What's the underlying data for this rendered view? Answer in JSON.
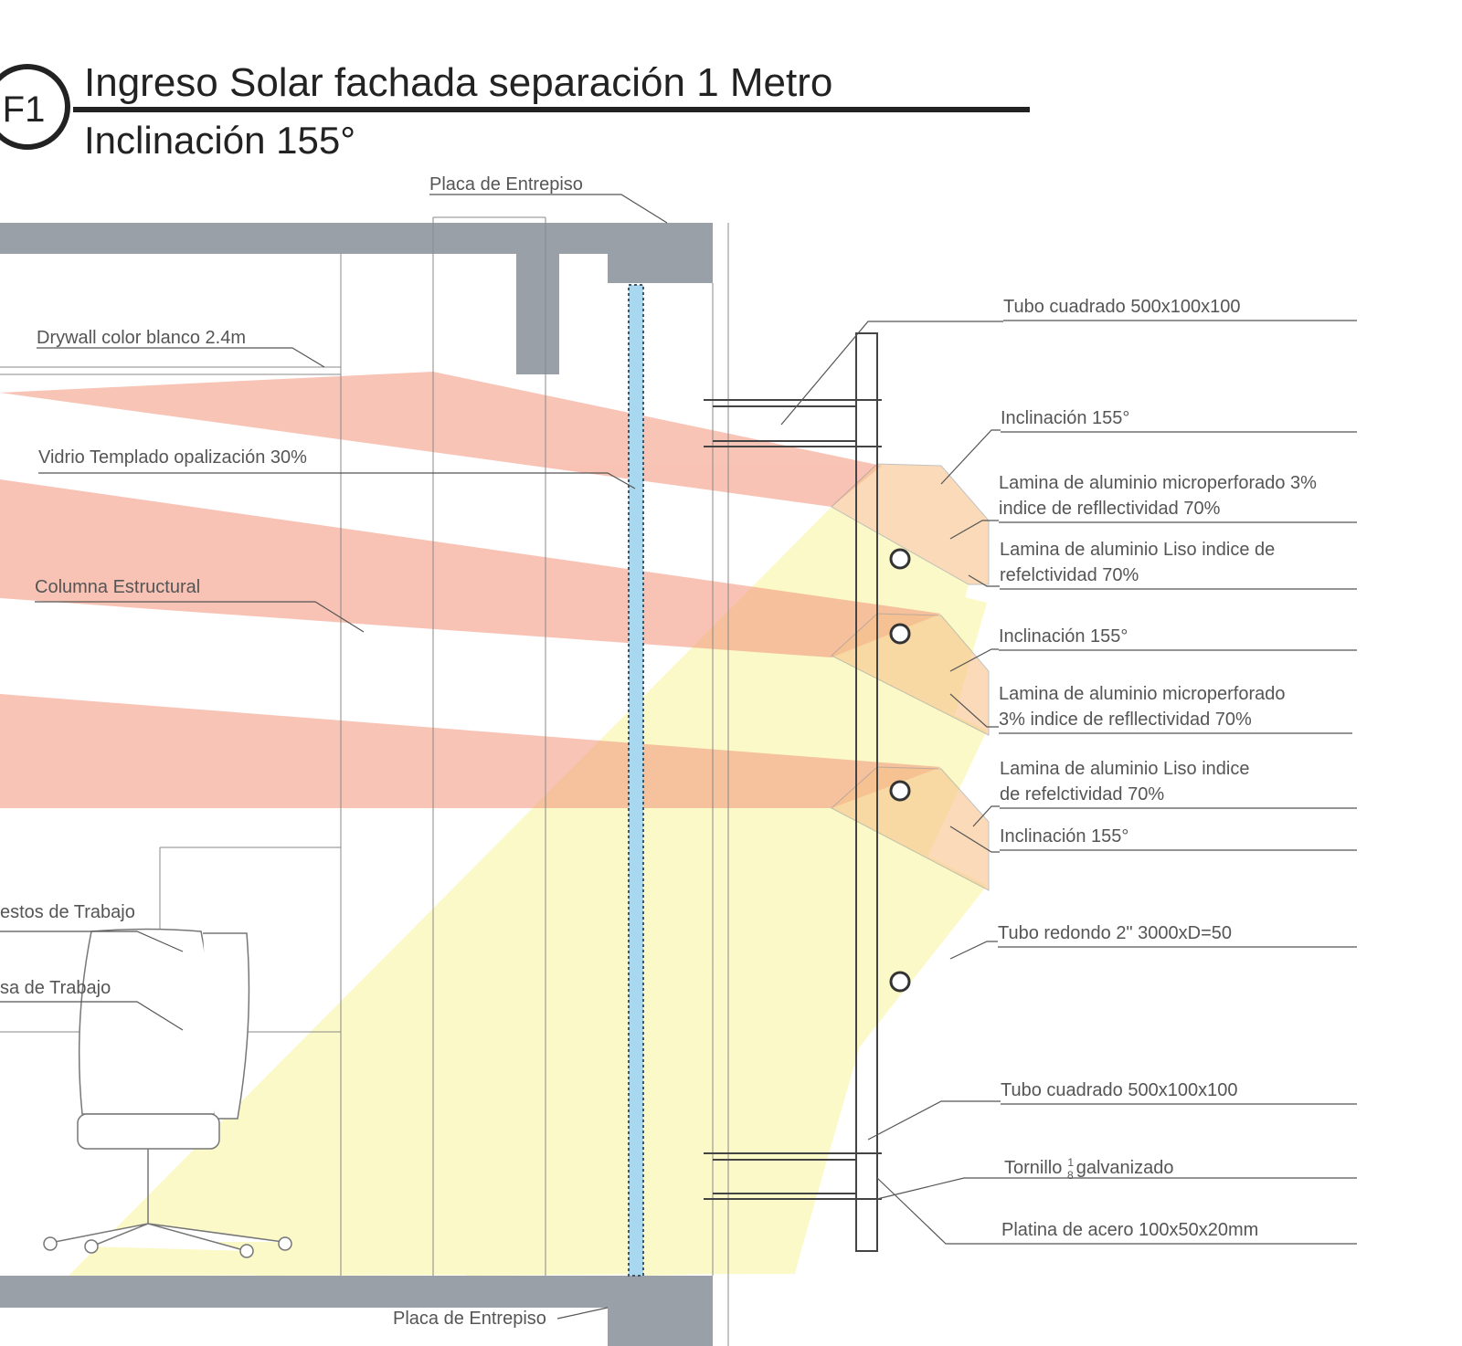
{
  "badge": "F1",
  "title": "Ingreso Solar fachada separación 1 Metro",
  "subtitle": "Inclinación 155°",
  "labels": [
    {
      "lines": [
        "Placa de Entrepiso"
      ]
    },
    {
      "lines": [
        "Drywall color blanco 2.4m"
      ]
    },
    {
      "lines": [
        "Vidrio Templado opalización 30%"
      ]
    },
    {
      "lines": [
        "Columna Estructural"
      ]
    },
    {
      "lines": [
        "estos de Trabajo"
      ]
    },
    {
      "lines": [
        "sa de Trabajo"
      ]
    },
    {
      "lines": [
        "Placa de Entrepiso"
      ]
    },
    {
      "lines": [
        "Tubo cuadrado 500x100x100"
      ]
    },
    {
      "lines": [
        "Inclinación 155°"
      ]
    },
    {
      "lines": [
        "Lamina  de aluminio microperforado 3%",
        "indice de refllectividad 70%"
      ]
    },
    {
      "lines": [
        "Lamina  de aluminio  Liso indice de",
        "refelctividad 70%"
      ]
    },
    {
      "lines": [
        "Inclinación 155°"
      ]
    },
    {
      "lines": [
        "Lamina  de aluminio microperforado",
        "3% indice de refllectividad 70%"
      ]
    },
    {
      "lines": [
        "Lamina  de aluminio  Liso indice",
        "de refelctividad 70%"
      ]
    },
    {
      "lines": [
        "Inclinación 155°"
      ]
    },
    {
      "lines": [
        "Tubo redondo 2\" 3000xD=50"
      ]
    },
    {
      "lines": [
        "Tubo cuadrado 500x100x100"
      ]
    },
    {
      "lines": [
        "Platina de acero 100x50x20mm"
      ]
    }
  ],
  "tornillo": {
    "text": "Tornillo",
    "num": "1",
    "den": "8",
    "rest": "galvanizado"
  }
}
